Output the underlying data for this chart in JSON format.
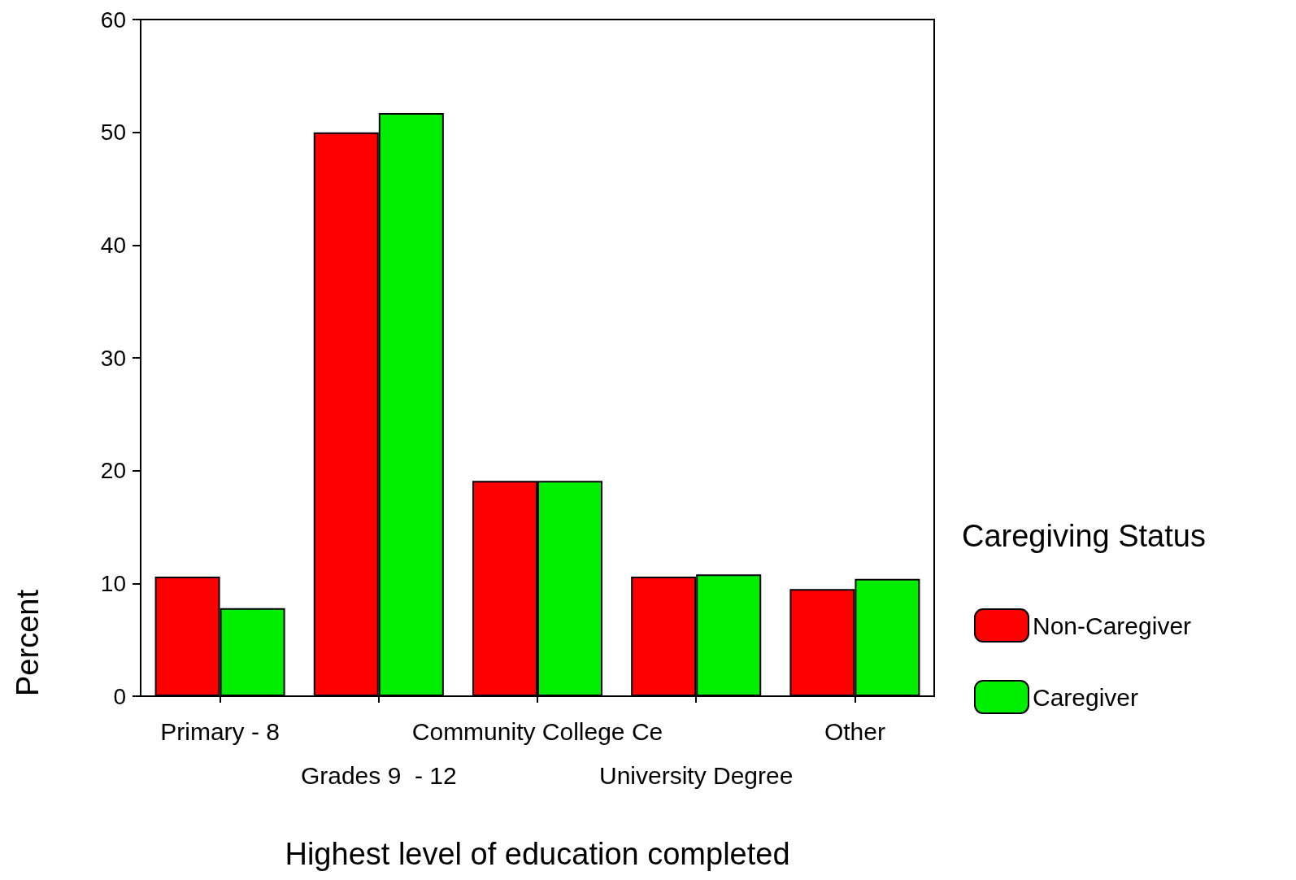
{
  "chart_data": {
    "type": "bar",
    "xlabel": "Highest level of education completed",
    "ylabel": "Percent",
    "legend_title": "Caregiving Status",
    "categories": [
      "Primary - 8",
      "Grades 9  - 12",
      "Community College Ce",
      "University Degree",
      "Other"
    ],
    "series": [
      {
        "name": "Non-Caregiver",
        "color": "#ff0000",
        "values": [
          10.6,
          50.0,
          19.1,
          10.6,
          9.5
        ]
      },
      {
        "name": "Caregiver",
        "color": "#00ee00",
        "values": [
          7.8,
          51.7,
          19.1,
          10.8,
          10.4
        ]
      }
    ],
    "ylim": [
      0,
      60
    ],
    "yticks": [
      0,
      10,
      20,
      30,
      40,
      50,
      60
    ],
    "grid": false,
    "legend": "right"
  }
}
